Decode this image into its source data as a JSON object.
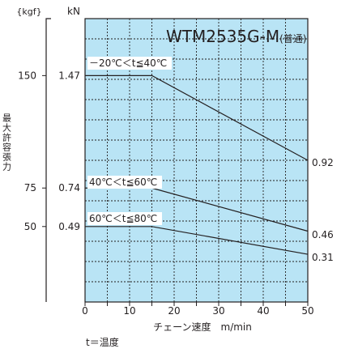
{
  "colors": {
    "plot_background": "#b9e4f5",
    "grid": "#231f20",
    "lines": "#231f20",
    "text": "#231f20"
  },
  "header": {
    "unit_kgf": "{kgf}",
    "unit_kn": "kN"
  },
  "footnote": "t＝温度",
  "chart_data": {
    "type": "line",
    "title": "WTM2535G-M",
    "title_suffix": "(普通)",
    "xlabel": "チェーン速度　m/min",
    "ylabel": "最大許容張力",
    "xlim": [
      0,
      50
    ],
    "ylim_kn": [
      0,
      1.84
    ],
    "x_ticks": [
      0,
      5,
      10,
      15,
      20,
      25,
      30,
      35,
      40,
      45,
      50
    ],
    "x_tick_labels": [
      "0",
      "10",
      "20",
      "30",
      "40",
      "50"
    ],
    "x_tick_label_values": [
      0,
      10,
      20,
      30,
      40,
      50
    ],
    "y_ticks": [
      {
        "kn": 1.47,
        "kn_label": "1.47",
        "kgf_label": "150"
      },
      {
        "kn": 0.74,
        "kn_label": "0.74",
        "kgf_label": "75"
      },
      {
        "kn": 0.49,
        "kn_label": "0.49",
        "kgf_label": "50"
      }
    ],
    "series": [
      {
        "name": "－20℃＜t≦40℃",
        "x": [
          0,
          15,
          50
        ],
        "y": [
          1.47,
          1.47,
          0.92
        ],
        "end_label": "0.92"
      },
      {
        "name": "40℃＜t≦60℃",
        "x": [
          0,
          15,
          50
        ],
        "y": [
          0.74,
          0.74,
          0.46
        ],
        "end_label": "0.46"
      },
      {
        "name": "60℃＜t≦80℃",
        "x": [
          0,
          15,
          50
        ],
        "y": [
          0.49,
          0.49,
          0.31
        ],
        "end_label": "0.31"
      }
    ]
  }
}
